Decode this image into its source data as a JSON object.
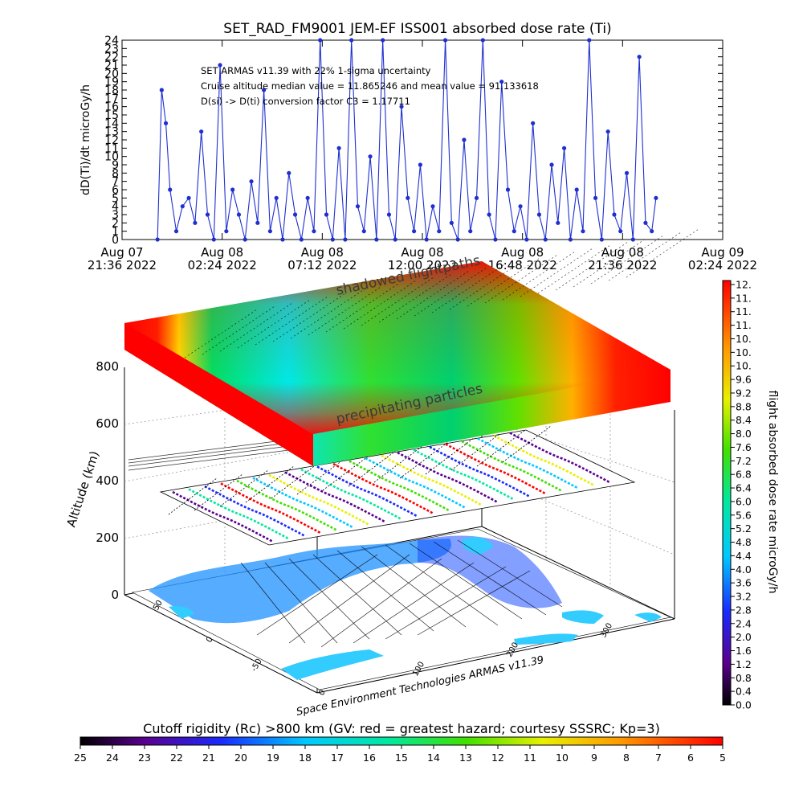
{
  "chart_data": [
    {
      "type": "line",
      "title": "SET_RAD_FM9001  JEM-EF ISS001 absorbed dose rate (Ti)",
      "ylabel": "dD(Ti)/dt microGy/h",
      "ylim": [
        0,
        24
      ],
      "yticks": [
        "0",
        "1",
        "2",
        "3",
        "4",
        "5",
        "6",
        "7",
        "8",
        "9",
        "10",
        "11",
        "12",
        "13",
        "14",
        "15",
        "16",
        "17",
        "18",
        "19",
        "20",
        "21",
        "22",
        "23",
        "24"
      ],
      "xticks": [
        {
          "date": "Aug 07",
          "time": "21:36  2022"
        },
        {
          "date": "Aug 08",
          "time": "02:24  2022"
        },
        {
          "date": "Aug 08",
          "time": "07:12  2022"
        },
        {
          "date": "Aug 08",
          "time": "12:00  2022"
        },
        {
          "date": "Aug 08",
          "time": "16:48  2022"
        },
        {
          "date": "Aug 08",
          "time": "21:36  2022"
        },
        {
          "date": "Aug 09",
          "time": "02:24  2022"
        }
      ],
      "annotations": [
        "SET ARMAS v11.39 with 22% 1-sigma uncertainty",
        "Cruise altitude median value =  11.865246 and mean value = 91.133618",
        "D(si) -> D(ti) conversion factor C3 =  1.17711"
      ],
      "grid": false,
      "series": [
        {
          "color": "#1f2fd0",
          "x": [
            "2022-08-07 23:18",
            "2022-08-07 23:30",
            "2022-08-07 23:42",
            "2022-08-07 23:54",
            "2022-08-08 00:12",
            "2022-08-08 00:30",
            "2022-08-08 00:48",
            "2022-08-08 01:06",
            "2022-08-08 01:24",
            "2022-08-08 01:42",
            "2022-08-08 02:00",
            "2022-08-08 02:18",
            "2022-08-08 02:36",
            "2022-08-08 02:54",
            "2022-08-08 03:12",
            "2022-08-08 03:30",
            "2022-08-08 03:48",
            "2022-08-08 04:06",
            "2022-08-08 04:24",
            "2022-08-08 04:42",
            "2022-08-08 05:00",
            "2022-08-08 05:18",
            "2022-08-08 05:36",
            "2022-08-08 05:54",
            "2022-08-08 06:12",
            "2022-08-08 06:30",
            "2022-08-08 06:48",
            "2022-08-08 07:06",
            "2022-08-08 07:24",
            "2022-08-08 07:42",
            "2022-08-08 08:00",
            "2022-08-08 08:18",
            "2022-08-08 08:36",
            "2022-08-08 08:54",
            "2022-08-08 09:12",
            "2022-08-08 09:30",
            "2022-08-08 09:48",
            "2022-08-08 10:06",
            "2022-08-08 10:24",
            "2022-08-08 10:42",
            "2022-08-08 11:00",
            "2022-08-08 11:18",
            "2022-08-08 11:36",
            "2022-08-08 11:54",
            "2022-08-08 12:12",
            "2022-08-08 12:30",
            "2022-08-08 12:48",
            "2022-08-08 13:06",
            "2022-08-08 13:24",
            "2022-08-08 13:42",
            "2022-08-08 14:00",
            "2022-08-08 14:18",
            "2022-08-08 14:36",
            "2022-08-08 14:54",
            "2022-08-08 15:12",
            "2022-08-08 15:30",
            "2022-08-08 15:48",
            "2022-08-08 16:06",
            "2022-08-08 16:24",
            "2022-08-08 16:42",
            "2022-08-08 17:00",
            "2022-08-08 17:18",
            "2022-08-08 17:36",
            "2022-08-08 17:54",
            "2022-08-08 18:12",
            "2022-08-08 18:30",
            "2022-08-08 18:48",
            "2022-08-08 19:06",
            "2022-08-08 19:24",
            "2022-08-08 19:42",
            "2022-08-08 20:00",
            "2022-08-08 20:18",
            "2022-08-08 20:36",
            "2022-08-08 20:54",
            "2022-08-08 21:12",
            "2022-08-08 21:30",
            "2022-08-08 21:48",
            "2022-08-08 22:06",
            "2022-08-08 22:24",
            "2022-08-08 22:42",
            "2022-08-08 23:00",
            "2022-08-08 23:12"
          ],
          "y": [
            0,
            18,
            14,
            6,
            1,
            4,
            5,
            2,
            13,
            3,
            0,
            21,
            1,
            6,
            3,
            0,
            7,
            2,
            18,
            1,
            5,
            0,
            8,
            3,
            0,
            5,
            1,
            24,
            3,
            0,
            11,
            0,
            24,
            4,
            1,
            10,
            0,
            24,
            3,
            0,
            16,
            5,
            1,
            9,
            0,
            4,
            1,
            24,
            2,
            0,
            12,
            1,
            5,
            24,
            3,
            0,
            19,
            6,
            1,
            4,
            0,
            14,
            3,
            0,
            9,
            2,
            11,
            0,
            6,
            1,
            24,
            5,
            0,
            13,
            3,
            1,
            8,
            0,
            22,
            2,
            1,
            5
          ]
        }
      ]
    },
    {
      "type": "heatmap",
      "zlabel": "Altitude (km)",
      "zticks": [
        "0",
        "200",
        "400",
        "600",
        "800"
      ],
      "xticks": [
        "0",
        "100",
        "200",
        "300"
      ],
      "yticks": [
        "-50",
        "0",
        "50"
      ],
      "labels": [
        "shadowed flightpaths",
        "precipitating particles",
        "Space Environment Technologies ARMAS v11.39"
      ],
      "colorbar_right": {
        "label": "flight absorbed dose rate microGy/h",
        "ticks": [
          "12.",
          "11.",
          "11.",
          "11.",
          "10.",
          "10.",
          "10.",
          "9.6",
          "9.2",
          "8.8",
          "8.4",
          "8.0",
          "7.6",
          "7.2",
          "6.8",
          "6.4",
          "6.0",
          "5.6",
          "5.2",
          "4.8",
          "4.4",
          "4.0",
          "3.6",
          "3.2",
          "2.8",
          "2.4",
          "2.0",
          "1.6",
          "1.2",
          "0.8",
          "0.4",
          "0.0"
        ]
      },
      "colorbar_bottom": {
        "label": "Cutoff rigidity (Rc) >800 km (GV: red = greatest hazard; courtesy SSSRC; Kp=3)",
        "ticks": [
          "25",
          "24",
          "23",
          "22",
          "21",
          "20",
          "19",
          "18",
          "17",
          "16",
          "15",
          "14",
          "13",
          "12",
          "11",
          "10",
          "9",
          "8",
          "7",
          "6",
          "5"
        ]
      }
    }
  ]
}
